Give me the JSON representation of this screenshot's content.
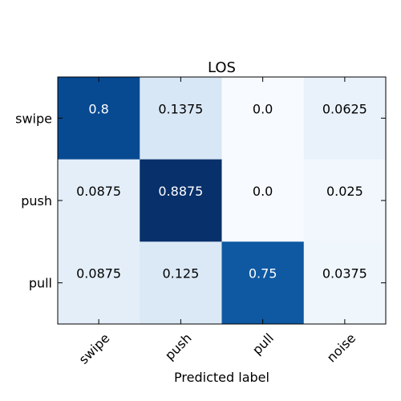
{
  "chart_data": {
    "type": "heatmap",
    "title": "LOS",
    "xlabel": "Predicted label",
    "ylabel": "",
    "x_categories": [
      "swipe",
      "push",
      "pull",
      "noise"
    ],
    "y_categories": [
      "swipe",
      "push",
      "pull"
    ],
    "values": [
      [
        0.8,
        0.1375,
        0.0,
        0.0625
      ],
      [
        0.0875,
        0.8875,
        0.0,
        0.025
      ],
      [
        0.0875,
        0.125,
        0.75,
        0.0375
      ]
    ],
    "value_labels": [
      [
        "0.8",
        "0.1375",
        "0.0",
        "0.0625"
      ],
      [
        "0.0875",
        "0.8875",
        "0.0",
        "0.025"
      ],
      [
        "0.0875",
        "0.125",
        "0.75",
        "0.0375"
      ]
    ],
    "colormap": "Blues",
    "color_range": [
      0.0,
      0.8875
    ],
    "colors": {
      "low": "#f7fbff",
      "high": "#08306b",
      "text_on_dark": "#ffffff",
      "text_on_light": "#000000"
    },
    "grid": false,
    "legend": "none"
  }
}
